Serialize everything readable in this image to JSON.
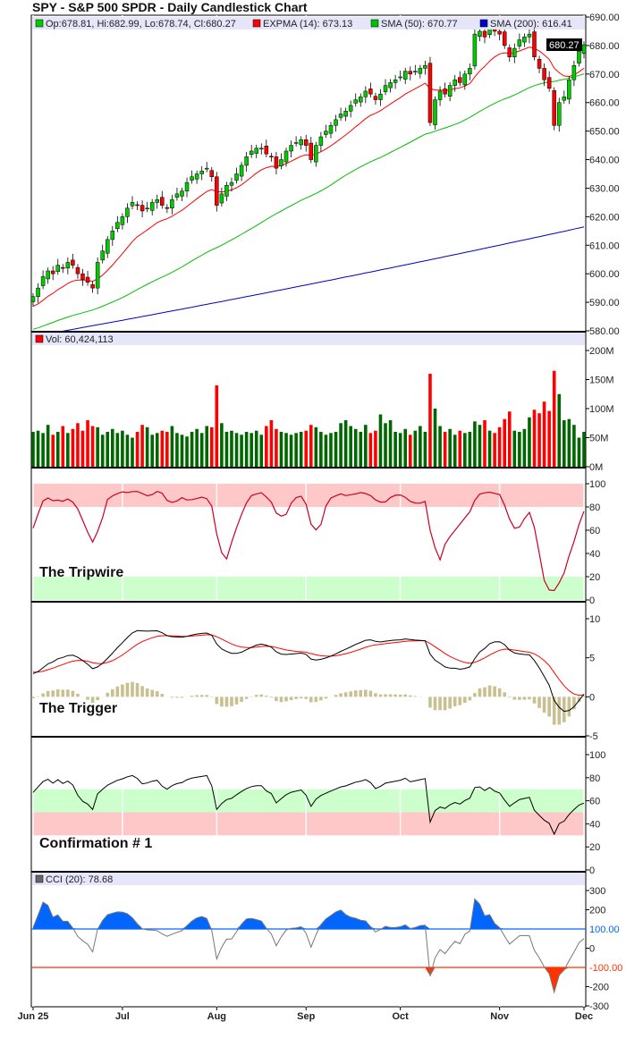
{
  "title": "SPY - S&P 500 SPDR - Daily Candlestick Chart",
  "legend": {
    "ohlc": "Op:678.81, Hi:682.99, Lo:678.74, Cl:680.27",
    "expma": "EXPMA (14): 673.13",
    "sma50": "SMA (50): 670.77",
    "sma200": "SMA (200): 616.41",
    "vol": "Vol: 60,424,113",
    "cci": "CCI (20): 78.68",
    "last_price": "680.27"
  },
  "panel_labels": {
    "tripwire": "The Tripwire",
    "trigger": "The Trigger",
    "confirmation": "Confirmation # 1"
  },
  "colors": {
    "up": "#00cc00",
    "down": "#ff0000",
    "expma": "#ff0000",
    "sma50": "#00c000",
    "sma200": "#0000cc",
    "vol_up": "#006600",
    "vol_down": "#ff0000",
    "stoch": "#cc0022",
    "cci_pos": "#0066ff",
    "cci_neg": "#ff3300",
    "hist": "#c8c090",
    "legend_bg": "#e6e6fa"
  },
  "chart_data": {
    "type": "candlestick",
    "title": "SPY - S&P 500 SPDR - Daily Candlestick Chart",
    "x_ticks": [
      {
        "label": "Jun 25",
        "day": 0
      },
      {
        "label": "Jul",
        "day": 18
      },
      {
        "label": "Aug",
        "day": 37
      },
      {
        "label": "Sep",
        "day": 55
      },
      {
        "label": "Oct",
        "day": 74
      },
      {
        "label": "Nov",
        "day": 94
      },
      {
        "label": "Dec",
        "day": 111
      }
    ],
    "close": [
      592,
      595,
      599,
      601,
      600,
      603,
      602,
      604,
      603,
      600,
      598,
      597,
      595,
      604,
      608,
      612,
      615,
      618,
      620,
      623,
      625,
      624,
      622,
      623,
      625,
      626,
      624,
      623,
      626,
      628,
      629,
      632,
      634,
      635,
      636,
      637,
      634,
      624,
      628,
      631,
      632,
      635,
      638,
      641,
      643,
      644,
      644,
      642,
      641,
      637,
      640,
      643,
      645,
      646,
      647,
      645,
      640,
      645,
      648,
      650,
      652,
      654,
      656,
      657,
      659,
      661,
      662,
      664,
      663,
      661,
      663,
      666,
      667,
      668,
      669,
      671,
      670,
      671,
      672,
      673,
      653,
      661,
      664,
      663,
      666,
      668,
      667,
      670,
      672,
      684,
      685,
      683,
      687,
      685,
      684,
      680,
      676,
      679,
      682,
      683,
      684,
      676,
      672,
      668,
      665,
      652,
      660,
      662,
      668,
      673,
      678,
      680.27
    ],
    "volume_millions": [
      60,
      62,
      58,
      72,
      55,
      60,
      70,
      58,
      65,
      75,
      62,
      80,
      70,
      68,
      55,
      60,
      65,
      58,
      62,
      55,
      50,
      60,
      72,
      68,
      55,
      58,
      62,
      60,
      70,
      58,
      55,
      52,
      60,
      65,
      58,
      70,
      68,
      140,
      75,
      60,
      62,
      58,
      55,
      60,
      58,
      62,
      55,
      70,
      80,
      65,
      60,
      58,
      55,
      58,
      60,
      62,
      72,
      68,
      60,
      55,
      58,
      60,
      75,
      80,
      70,
      65,
      60,
      72,
      58,
      62,
      90,
      75,
      80,
      60,
      58,
      65,
      55,
      62,
      70,
      60,
      160,
      100,
      70,
      60,
      65,
      55,
      62,
      58,
      60,
      78,
      72,
      80,
      62,
      58,
      68,
      82,
      95,
      62,
      60,
      65,
      85,
      98,
      92,
      112,
      96,
      165,
      125,
      80,
      82,
      72,
      50,
      60
    ],
    "sma200_range": [
      578,
      616.41
    ],
    "panels": {
      "price": {
        "ylim": [
          580,
          690
        ],
        "ticks": [
          "690.00",
          "680.00",
          "670.00",
          "660.00",
          "650.00",
          "640.00",
          "630.00",
          "620.00",
          "610.00",
          "600.00",
          "590.00",
          "580.00"
        ]
      },
      "volume": {
        "ylim": [
          0,
          200
        ],
        "ticks": [
          "200M",
          "150M",
          "100M",
          "50M",
          "0M"
        ]
      },
      "tripwire": {
        "ylim": [
          0,
          100
        ],
        "bands": [
          [
            80,
            100
          ],
          [
            0,
            20
          ]
        ],
        "ticks": [
          "100",
          "80",
          "60",
          "40",
          "20",
          "0"
        ]
      },
      "trigger": {
        "ylim": [
          -5,
          10
        ],
        "ticks": [
          "10",
          "5",
          "0",
          "-5"
        ]
      },
      "confirmation": {
        "ylim": [
          0,
          100
        ],
        "bands": [
          [
            50,
            70
          ],
          [
            30,
            50
          ]
        ],
        "ticks": [
          "100",
          "80",
          "60",
          "40",
          "20",
          "0"
        ]
      },
      "cci": {
        "ylim": [
          -300,
          300
        ],
        "ticks": [
          "300",
          "200",
          "0",
          "-200",
          "-300"
        ],
        "levels": [
          "100.00",
          "-100.00"
        ]
      }
    }
  }
}
